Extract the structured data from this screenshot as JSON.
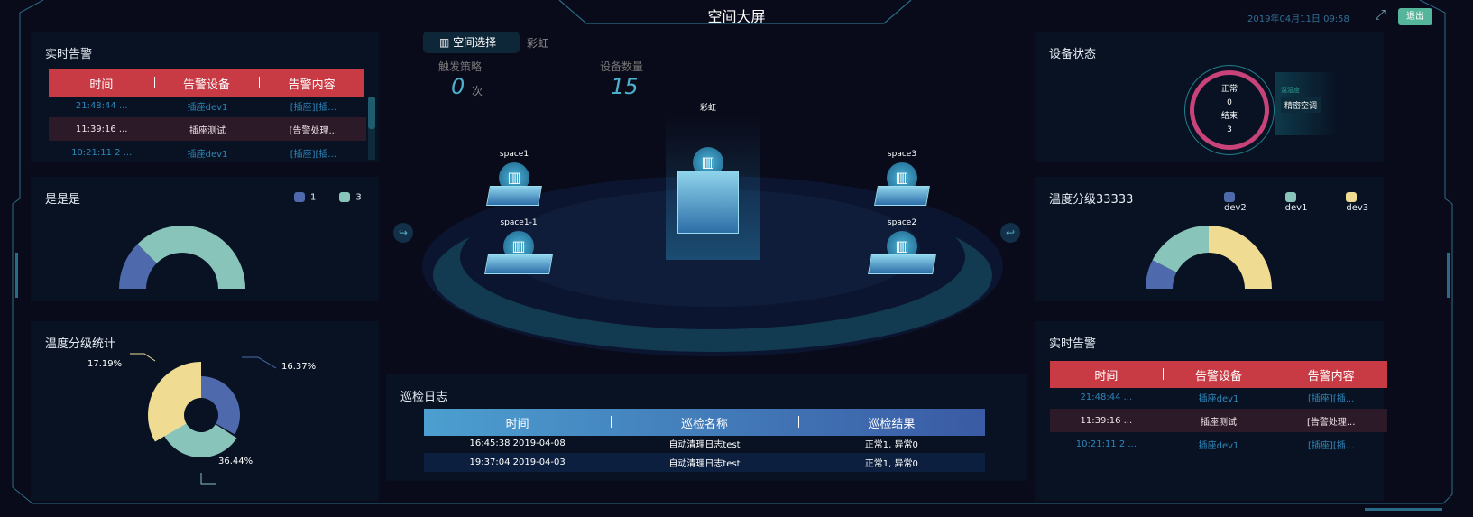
{
  "header": {
    "title": "空间大屏",
    "datetime": "2019年04月11日  09:58",
    "exit_label": "退出"
  },
  "colors": {
    "alarm_header": "#c83a44",
    "blue": "#4e6aad",
    "teal": "#89c4ba",
    "yellow": "#efdc92",
    "pink": "#c8437a"
  },
  "left_alarm": {
    "title": "实时告警",
    "columns": [
      "时间",
      "告警设备",
      "告警内容"
    ],
    "rows": [
      [
        "21:48:44 ...",
        "插座dev1",
        "[插座][插..."
      ],
      [
        "11:39:16 ...",
        "插座测试",
        "[告警处理..."
      ],
      [
        "10:21:11 2 ...",
        "插座dev1",
        "[插座][插..."
      ]
    ]
  },
  "gauge_left": {
    "title": "是是是",
    "chart_data": {
      "type": "pie",
      "subtype": "half-donut",
      "series": [
        {
          "name": "1",
          "value": 1,
          "color": "#4e6aad"
        },
        {
          "name": "3",
          "value": 3,
          "color": "#89c4ba"
        }
      ]
    }
  },
  "temp_stats": {
    "title": "温度分级统计",
    "chart_data": {
      "type": "pie",
      "subtype": "rose",
      "series": [
        {
          "label": "16.37%",
          "value": 16.37,
          "color": "#4e6aad"
        },
        {
          "label": "36.44%",
          "value": 36.44,
          "color": "#89c4ba"
        },
        {
          "label": "17.19%",
          "value": 17.19,
          "color": "#efdc92"
        }
      ]
    }
  },
  "center": {
    "space_select_label": "空间选择",
    "current_space": "彩虹",
    "trigger_label": "触发策略",
    "trigger_value": "0",
    "trigger_unit": "次",
    "device_count_label": "设备数量",
    "device_count_value": "15",
    "nodes": [
      "彩虹",
      "space1",
      "space1-1",
      "space3",
      "space2"
    ]
  },
  "patrol_log": {
    "title": "巡检日志",
    "columns": [
      "时间",
      "巡检名称",
      "巡检结果"
    ],
    "rows": [
      [
        "16:45:38 2019-04-08",
        "自动清理日志test",
        "正常1, 异常0"
      ],
      [
        "19:37:04 2019-04-03",
        "自动清理日志test",
        "正常1, 异常0"
      ]
    ]
  },
  "device_status": {
    "title": "设备状态",
    "normal_label": "正常",
    "normal_value": "0",
    "end_label": "结束",
    "end_value": "3",
    "category": "温湿度",
    "device": "精密空调"
  },
  "gauge_right": {
    "title": "温度分级33333",
    "chart_data": {
      "type": "pie",
      "subtype": "half-donut",
      "series": [
        {
          "name": "dev2",
          "value": 15,
          "color": "#4e6aad"
        },
        {
          "name": "dev1",
          "value": 35,
          "color": "#89c4ba"
        },
        {
          "name": "dev3",
          "value": 50,
          "color": "#efdc92"
        }
      ]
    }
  },
  "right_alarm": {
    "title": "实时告警",
    "columns": [
      "时间",
      "告警设备",
      "告警内容"
    ],
    "rows": [
      [
        "21:48:44 ...",
        "插座dev1",
        "[插座][插..."
      ],
      [
        "11:39:16 ...",
        "插座测试",
        "[告警处理..."
      ],
      [
        "10:21:11 2 ...",
        "插座dev1",
        "[插座][插..."
      ]
    ]
  }
}
